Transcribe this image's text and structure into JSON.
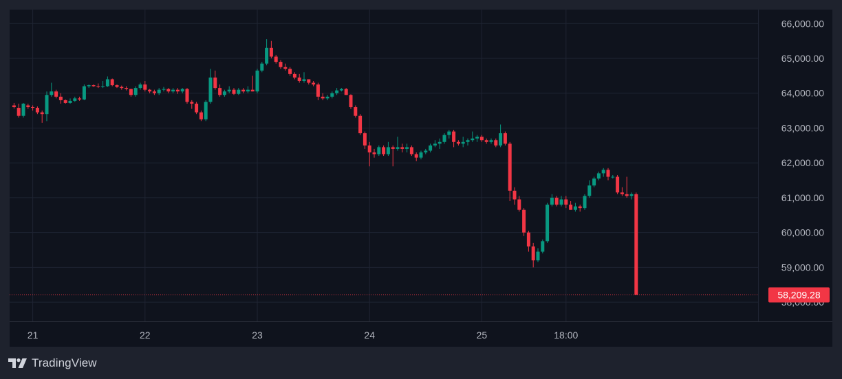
{
  "brand": {
    "name": "TradingView",
    "icon": "tradingview-logo-icon"
  },
  "colors": {
    "up": "#089981",
    "down": "#f23645",
    "grid": "#1f2433",
    "axis_text": "#b2b5be",
    "price_line": "#f23645"
  },
  "last_price": {
    "label": "58,209.28",
    "value": 58209.28
  },
  "chart_data": {
    "type": "candlestick",
    "title": "",
    "xlabel": "",
    "ylabel": "",
    "ylim": [
      57450,
      66400
    ],
    "yticks": [
      "66,000.00",
      "65,000.00",
      "64,000.00",
      "63,000.00",
      "62,000.00",
      "61,000.00",
      "60,000.00",
      "59,000.00",
      "58,000.00"
    ],
    "ytick_values": [
      66000,
      65000,
      64000,
      63000,
      62000,
      61000,
      60000,
      59000,
      58000
    ],
    "xticks": [
      {
        "label": "21",
        "t": 4.5
      },
      {
        "label": "22",
        "t": 28.5
      },
      {
        "label": "23",
        "t": 52.5
      },
      {
        "label": "24",
        "t": 76.5
      },
      {
        "label": "25",
        "t": 100.5
      },
      {
        "label": "18:00",
        "t": 118.5
      }
    ],
    "grid": true,
    "candles": [
      [
        63650,
        63720,
        63560,
        63600
      ],
      [
        63580,
        63700,
        63300,
        63350
      ],
      [
        63350,
        63720,
        63300,
        63700
      ],
      [
        63650,
        63700,
        63550,
        63600
      ],
      [
        63600,
        63650,
        63500,
        63580
      ],
      [
        63580,
        63620,
        63400,
        63450
      ],
      [
        63450,
        63500,
        63150,
        63400
      ],
      [
        63400,
        64050,
        63200,
        63950
      ],
      [
        63950,
        64300,
        63900,
        64050
      ],
      [
        64050,
        64100,
        63850,
        63900
      ],
      [
        63900,
        64000,
        63700,
        63800
      ],
      [
        63800,
        63820,
        63700,
        63720
      ],
      [
        63720,
        63850,
        63700,
        63780
      ],
      [
        63780,
        63900,
        63750,
        63850
      ],
      [
        63850,
        63900,
        63780,
        63820
      ],
      [
        63820,
        64250,
        63800,
        64200
      ],
      [
        64200,
        64250,
        64150,
        64230
      ],
      [
        64230,
        64250,
        64180,
        64200
      ],
      [
        64200,
        64280,
        64150,
        64180
      ],
      [
        64180,
        64350,
        64150,
        64200
      ],
      [
        64200,
        64480,
        64180,
        64400
      ],
      [
        64400,
        64420,
        64200,
        64230
      ],
      [
        64230,
        64250,
        64150,
        64180
      ],
      [
        64180,
        64220,
        64100,
        64150
      ],
      [
        64150,
        64200,
        64080,
        64120
      ],
      [
        64120,
        64130,
        63900,
        63950
      ],
      [
        63950,
        64200,
        63900,
        64150
      ],
      [
        64150,
        64300,
        64100,
        64250
      ],
      [
        64250,
        64350,
        64050,
        64100
      ],
      [
        64100,
        64120,
        64000,
        64050
      ],
      [
        64050,
        64100,
        63950,
        64000
      ],
      [
        64000,
        64150,
        63950,
        64100
      ],
      [
        64100,
        64180,
        64050,
        64120
      ],
      [
        64120,
        64150,
        64000,
        64050
      ],
      [
        64050,
        64150,
        64000,
        64100
      ],
      [
        64100,
        64150,
        63980,
        64050
      ],
      [
        64050,
        64150,
        64000,
        64120
      ],
      [
        64120,
        64150,
        63700,
        63750
      ],
      [
        63750,
        63800,
        63550,
        63700
      ],
      [
        63700,
        63750,
        63400,
        63450
      ],
      [
        63450,
        63500,
        63200,
        63250
      ],
      [
        63250,
        63800,
        63200,
        63750
      ],
      [
        63750,
        64700,
        63700,
        64450
      ],
      [
        64450,
        64650,
        64100,
        64150
      ],
      [
        64150,
        64250,
        63900,
        63950
      ],
      [
        63950,
        64100,
        63900,
        64050
      ],
      [
        64050,
        64200,
        64000,
        64100
      ],
      [
        64100,
        64150,
        63950,
        63980
      ],
      [
        63980,
        64150,
        63950,
        64100
      ],
      [
        64100,
        64150,
        64000,
        64050
      ],
      [
        64050,
        64200,
        64000,
        64100
      ],
      [
        64100,
        64500,
        64050,
        64050
      ],
      [
        64050,
        64700,
        64000,
        64650
      ],
      [
        64650,
        64900,
        64600,
        64850
      ],
      [
        64850,
        65550,
        64800,
        65300
      ],
      [
        65300,
        65500,
        65000,
        65050
      ],
      [
        65050,
        65100,
        64850,
        64900
      ],
      [
        64900,
        64950,
        64700,
        64750
      ],
      [
        64750,
        64850,
        64650,
        64700
      ],
      [
        64700,
        64750,
        64500,
        64550
      ],
      [
        64550,
        64600,
        64400,
        64450
      ],
      [
        64450,
        64550,
        64300,
        64350
      ],
      [
        64350,
        64600,
        64300,
        64400
      ],
      [
        64400,
        64400,
        64250,
        64300
      ],
      [
        64300,
        64350,
        64200,
        64250
      ],
      [
        64250,
        64300,
        63800,
        63900
      ],
      [
        63900,
        64000,
        63800,
        63850
      ],
      [
        63850,
        63950,
        63800,
        63900
      ],
      [
        63900,
        64050,
        63850,
        64000
      ],
      [
        64000,
        64150,
        63950,
        64080
      ],
      [
        64080,
        64150,
        64050,
        64120
      ],
      [
        64120,
        64150,
        63950,
        63950
      ],
      [
        63950,
        63970,
        63550,
        63600
      ],
      [
        63600,
        63650,
        63300,
        63350
      ],
      [
        63350,
        63400,
        62800,
        62850
      ],
      [
        62850,
        62900,
        62400,
        62500
      ],
      [
        62500,
        62600,
        61900,
        62300
      ],
      [
        62300,
        62400,
        62150,
        62250
      ],
      [
        62250,
        62500,
        62200,
        62450
      ],
      [
        62450,
        62500,
        62200,
        62250
      ],
      [
        62250,
        62600,
        62200,
        62450
      ],
      [
        62450,
        62500,
        61900,
        62400
      ],
      [
        62400,
        62750,
        62350,
        62450
      ],
      [
        62450,
        62550,
        62300,
        62400
      ],
      [
        62400,
        62550,
        62300,
        62450
      ],
      [
        62450,
        62500,
        62200,
        62250
      ],
      [
        62250,
        62300,
        62050,
        62150
      ],
      [
        62150,
        62350,
        62100,
        62300
      ],
      [
        62300,
        62400,
        62250,
        62350
      ],
      [
        62350,
        62550,
        62300,
        62500
      ],
      [
        62500,
        62650,
        62450,
        62550
      ],
      [
        62550,
        62700,
        62400,
        62600
      ],
      [
        62600,
        62850,
        62550,
        62800
      ],
      [
        62800,
        62950,
        62700,
        62900
      ],
      [
        62900,
        62950,
        62450,
        62600
      ],
      [
        62600,
        62650,
        62500,
        62550
      ],
      [
        62550,
        62750,
        62450,
        62600
      ],
      [
        62600,
        62700,
        62500,
        62650
      ],
      [
        62650,
        62900,
        62600,
        62700
      ],
      [
        62700,
        62800,
        62600,
        62750
      ],
      [
        62750,
        62800,
        62600,
        62650
      ],
      [
        62650,
        62700,
        62550,
        62600
      ],
      [
        62600,
        62700,
        62550,
        62650
      ],
      [
        62650,
        62700,
        62450,
        62500
      ],
      [
        62500,
        63100,
        62450,
        62850
      ],
      [
        62850,
        62900,
        62500,
        62550
      ],
      [
        62550,
        62600,
        60900,
        61200
      ],
      [
        61200,
        61300,
        60800,
        60950
      ],
      [
        60950,
        61050,
        60600,
        60650
      ],
      [
        60650,
        60700,
        59900,
        60000
      ],
      [
        60000,
        60050,
        59450,
        59600
      ],
      [
        59600,
        59700,
        59000,
        59200
      ],
      [
        59200,
        59550,
        59150,
        59450
      ],
      [
        59450,
        59800,
        59400,
        59750
      ],
      [
        59750,
        60850,
        59700,
        60800
      ],
      [
        60800,
        61100,
        60750,
        61000
      ],
      [
        61000,
        61050,
        60750,
        60800
      ],
      [
        60800,
        61050,
        60750,
        60950
      ],
      [
        60950,
        61050,
        60700,
        60800
      ],
      [
        60800,
        60900,
        60650,
        60650
      ],
      [
        60650,
        60850,
        60600,
        60750
      ],
      [
        60750,
        60800,
        60600,
        60700
      ],
      [
        60700,
        61100,
        60650,
        61050
      ],
      [
        61050,
        61500,
        61000,
        61350
      ],
      [
        61350,
        61600,
        61300,
        61550
      ],
      [
        61550,
        61750,
        61500,
        61700
      ],
      [
        61700,
        61850,
        61600,
        61800
      ],
      [
        61800,
        61850,
        61500,
        61600
      ],
      [
        61600,
        61650,
        61550,
        61600
      ],
      [
        61600,
        61650,
        61100,
        61150
      ],
      [
        61150,
        61300,
        61050,
        61100
      ],
      [
        61100,
        61600,
        61000,
        61050
      ],
      [
        61050,
        61150,
        60950,
        61100
      ],
      [
        61100,
        61150,
        58209.28,
        58209.28
      ]
    ]
  }
}
